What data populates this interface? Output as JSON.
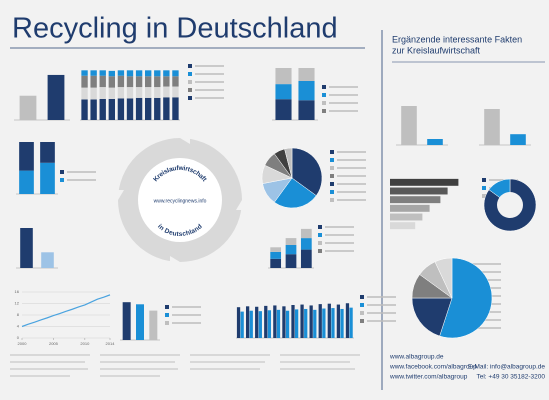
{
  "header": {
    "title": "Recycling in Deutschland"
  },
  "side": {
    "title": [
      "Ergänzende interessante Fakten",
      "zur Kreislaufwirtschaft"
    ]
  },
  "cycle": {
    "top": "Kreislaufwirtschaft",
    "bottom": "in Deutschland",
    "url": "www.recyclingnews.info"
  },
  "contact": {
    "web": [
      "www.albagroup.de",
      "www.facebook.com/albagroup",
      "www.twitter.com/albagroup"
    ],
    "mail": "E-Mail: info@albagroup.de",
    "tel": "Tel: +49 30 35182-3200"
  },
  "chart_data": [
    {
      "type": "bar",
      "categories": [
        null,
        null
      ],
      "values": [
        28,
        52
      ],
      "colors": [
        "#bfbfbf",
        "#1f3c6e"
      ],
      "ylim": [
        0,
        60
      ]
    },
    {
      "type": "bar",
      "stacked": true,
      "categories": [
        null,
        null,
        null,
        null,
        null,
        null,
        null,
        null,
        null,
        null,
        null
      ],
      "ylim": [
        0,
        100
      ],
      "series": [
        {
          "color": "#1f3c6e",
          "values": [
            38,
            38,
            39,
            39,
            40,
            40,
            41,
            41,
            41,
            42,
            42
          ]
        },
        {
          "color": "#d9d9d9",
          "values": [
            22,
            22,
            22,
            21,
            21,
            21,
            20,
            20,
            20,
            20,
            20
          ]
        },
        {
          "color": "#7f7f7f",
          "values": [
            22,
            22,
            21,
            21,
            21,
            20,
            20,
            20,
            20,
            19,
            19
          ]
        },
        {
          "color": "#1a8fd6",
          "values": [
            10,
            10,
            10,
            10,
            10,
            11,
            11,
            11,
            11,
            11,
            11
          ]
        }
      ]
    },
    {
      "type": "bar",
      "stacked": true,
      "categories": [
        null,
        null
      ],
      "ylim": [
        0,
        100
      ],
      "series": [
        {
          "color": "#1f3c6e",
          "values": [
            40,
            38
          ]
        },
        {
          "color": "#1a8fd6",
          "values": [
            29,
            37
          ]
        },
        {
          "color": "#bfbfbf",
          "values": [
            31,
            25
          ]
        }
      ]
    },
    {
      "type": "bar",
      "stacked": true,
      "categories": [
        null,
        null
      ],
      "ylim": [
        0,
        100
      ],
      "series": [
        {
          "color": "#1a8fd6",
          "values": [
            45,
            60
          ]
        },
        {
          "color": "#1f3c6e",
          "values": [
            55,
            40
          ]
        }
      ]
    },
    {
      "type": "pie",
      "values": [
        35,
        25,
        12,
        10,
        8,
        6,
        4
      ],
      "colors": [
        "#1f3c6e",
        "#1a8fd6",
        "#9dc3e6",
        "#d9d9d9",
        "#7f7f7f",
        "#404040",
        "#bfbfbf"
      ]
    },
    {
      "type": "bar",
      "categories": [
        null,
        null
      ],
      "values": [
        28,
        11
      ],
      "colors": [
        "#1f3c6e",
        "#9dc3e6"
      ],
      "ylim": [
        0,
        35
      ]
    },
    {
      "type": "bar",
      "stacked": true,
      "categories": [
        null,
        null,
        null
      ],
      "ylim": [
        0,
        100
      ],
      "series": [
        {
          "color": "#1f3c6e",
          "values": [
            20,
            30,
            40
          ]
        },
        {
          "color": "#1a8fd6",
          "values": [
            15,
            20,
            25
          ]
        },
        {
          "color": "#bfbfbf",
          "values": [
            10,
            15,
            20
          ]
        }
      ]
    },
    {
      "type": "line",
      "x": [
        2000,
        2001,
        2002,
        2003,
        2004,
        2005,
        2006,
        2007,
        2008,
        2009,
        2010,
        2011,
        2012,
        2013,
        2014
      ],
      "xlim": [
        2000,
        2014
      ],
      "xticks": [
        2000,
        2005,
        2010,
        2014
      ],
      "ylim": [
        0,
        16
      ],
      "yticks": [
        0,
        4,
        8,
        12,
        16
      ],
      "series": [
        {
          "color": "#4aa3df",
          "values": [
            4,
            4.8,
            5.5,
            6.3,
            7,
            7.8,
            8.5,
            9.3,
            10,
            10.8,
            11.5,
            12.5,
            13.5,
            14.2,
            15
          ]
        }
      ]
    },
    {
      "type": "bar",
      "categories": [
        null,
        null,
        null
      ],
      "values": [
        90,
        85,
        70
      ],
      "colors": [
        "#1f3c6e",
        "#1a8fd6",
        "#bfbfbf"
      ],
      "ylim": [
        0,
        100
      ]
    },
    {
      "type": "bar",
      "categories": [
        null,
        null,
        null,
        null,
        null,
        null,
        null,
        null,
        null,
        null,
        null,
        null,
        null
      ],
      "ylim": [
        0,
        100
      ],
      "series": [
        {
          "color": "#1f3c6e",
          "values": [
            70,
            72,
            71,
            73,
            74,
            72,
            75,
            76,
            74,
            77,
            78,
            76,
            79
          ]
        },
        {
          "color": "#1a8fd6",
          "values": [
            60,
            62,
            61,
            63,
            64,
            62,
            65,
            66,
            64,
            67,
            68,
            66,
            69
          ]
        }
      ]
    },
    {
      "type": "bar",
      "categories": [
        null,
        null
      ],
      "values": [
        26,
        4
      ],
      "colors": [
        "#bfbfbf",
        "#1a8fd6"
      ],
      "ylim": [
        0,
        30
      ]
    },
    {
      "type": "bar",
      "categories": [
        null,
        null
      ],
      "values": [
        4,
        1.2
      ],
      "colors": [
        "#bfbfbf",
        "#1a8fd6"
      ],
      "ylim": [
        0,
        5
      ]
    },
    {
      "type": "hbar",
      "values": [
        95,
        80,
        70,
        55,
        45,
        35
      ],
      "colors": [
        "#404040",
        "#595959",
        "#7f7f7f",
        "#a6a6a6",
        "#bfbfbf",
        "#d9d9d9"
      ],
      "xlim": [
        0,
        100
      ]
    },
    {
      "type": "pie",
      "donut": true,
      "values": [
        85,
        15
      ],
      "colors": [
        "#1f3c6e",
        "#1a8fd6"
      ]
    },
    {
      "type": "pie",
      "values": [
        55,
        20,
        10,
        8,
        7
      ],
      "colors": [
        "#1a8fd6",
        "#1f3c6e",
        "#7f7f7f",
        "#bfbfbf",
        "#d9d9d9"
      ]
    }
  ]
}
